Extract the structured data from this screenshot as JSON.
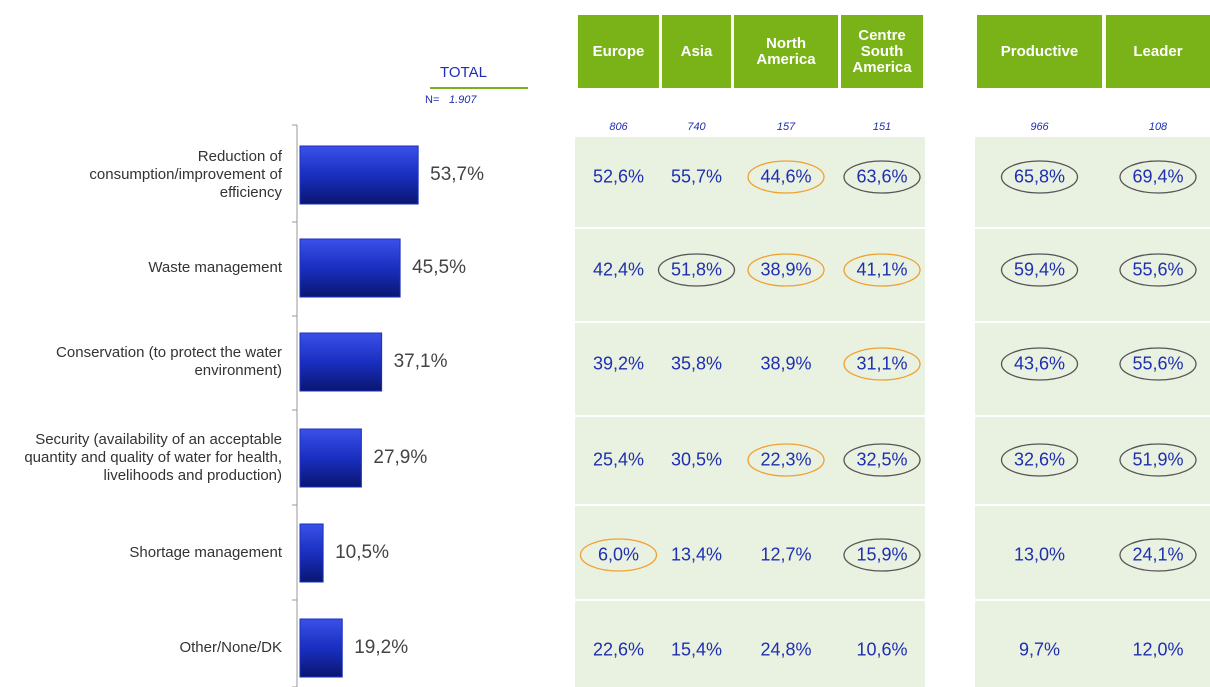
{
  "chart_data": {
    "type": "bar",
    "orientation": "horizontal",
    "header": "TOTAL",
    "n_label": "N=",
    "n_value": "1.907",
    "categories": [
      "Reduction of consumption/improvement of efficiency",
      "Waste management",
      "Conservation (to protect the water environment)",
      "Security (availability of an acceptable quantity and quality of water for health, livelihoods and production)",
      "Shortage management",
      "Other/None/DK"
    ],
    "values": [
      53.7,
      45.5,
      37.1,
      27.9,
      10.5,
      19.2
    ],
    "value_labels": [
      "53,7%",
      "45,5%",
      "37,1%",
      "27,9%",
      "10,5%",
      "19,2%"
    ],
    "color": "#1a2fc0",
    "xlim": [
      0,
      100
    ]
  },
  "table": {
    "header_color": "#7ab317",
    "columns": [
      "Europe",
      "Asia",
      "North America",
      "Centre South America",
      "Productive",
      "Leader"
    ],
    "n": [
      "806",
      "740",
      "157",
      "151",
      "966",
      "108"
    ],
    "rows": [
      [
        "52,6%",
        "55,7%",
        "44,6%",
        "63,6%",
        "65,8%",
        "69,4%"
      ],
      [
        "42,4%",
        "51,8%",
        "38,9%",
        "41,1%",
        "59,4%",
        "55,6%"
      ],
      [
        "39,2%",
        "35,8%",
        "38,9%",
        "31,1%",
        "43,6%",
        "55,6%"
      ],
      [
        "25,4%",
        "30,5%",
        "22,3%",
        "32,5%",
        "32,6%",
        "51,9%"
      ],
      [
        "6,0%",
        "13,4%",
        "12,7%",
        "15,9%",
        "13,0%",
        "24,1%"
      ],
      [
        "22,6%",
        "15,4%",
        "24,8%",
        "10,6%",
        "9,7%",
        "12,0%"
      ]
    ],
    "highlights": [
      [
        null,
        null,
        "#f0a030",
        "#555555",
        "#555555",
        "#555555"
      ],
      [
        null,
        "#555555",
        "#f0a030",
        "#f0a030",
        "#555555",
        "#555555"
      ],
      [
        null,
        null,
        null,
        "#f0a030",
        "#555555",
        "#555555"
      ],
      [
        null,
        null,
        "#f0a030",
        "#555555",
        "#555555",
        "#555555"
      ],
      [
        "#f0a030",
        null,
        null,
        "#555555",
        null,
        "#555555"
      ],
      [
        null,
        null,
        null,
        null,
        null,
        null
      ]
    ]
  }
}
